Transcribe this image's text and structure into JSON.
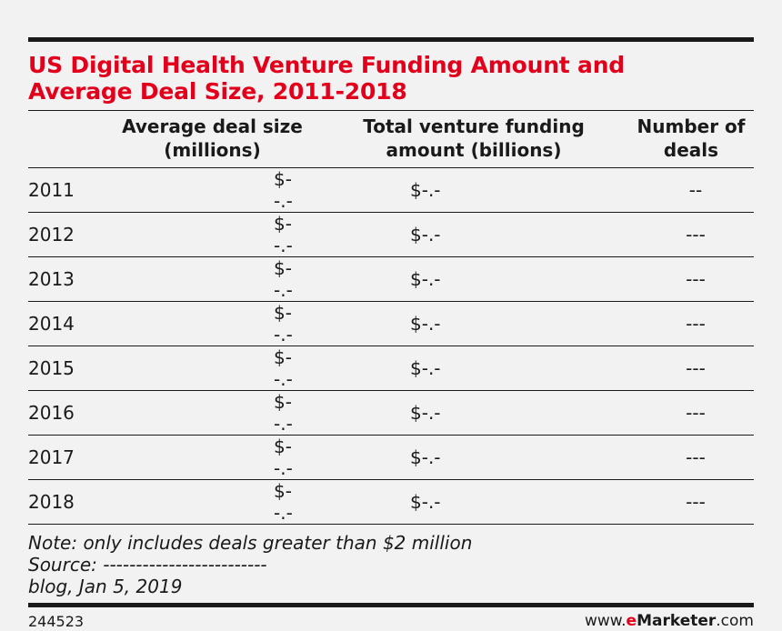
{
  "chart_data": {
    "type": "table",
    "title": "US Digital Health Venture Funding Amount and Average Deal Size, 2011-2018",
    "columns": [
      "",
      "Average deal size (millions)",
      "Total venture funding amount (billions)",
      "Number of deals"
    ],
    "column_lines": [
      [
        "Average deal size",
        "(millions)"
      ],
      [
        "Total venture funding",
        "amount (billions)"
      ],
      [
        "Number of",
        "deals"
      ]
    ],
    "rows": [
      {
        "year": "2011",
        "avg_deal_size": "$--.-",
        "total_funding": "$-.-",
        "num_deals": "--"
      },
      {
        "year": "2012",
        "avg_deal_size": "$--.-",
        "total_funding": "$-.-",
        "num_deals": "---"
      },
      {
        "year": "2013",
        "avg_deal_size": "$--.-",
        "total_funding": "$-.-",
        "num_deals": "---"
      },
      {
        "year": "2014",
        "avg_deal_size": "$--.-",
        "total_funding": "$-.-",
        "num_deals": "---"
      },
      {
        "year": "2015",
        "avg_deal_size": "$--.-",
        "total_funding": "$-.-",
        "num_deals": "---"
      },
      {
        "year": "2016",
        "avg_deal_size": "$--.-",
        "total_funding": "$-.-",
        "num_deals": "---"
      },
      {
        "year": "2017",
        "avg_deal_size": "$--.-",
        "total_funding": "$-.-",
        "num_deals": "---"
      },
      {
        "year": "2018",
        "avg_deal_size": "$--.-",
        "total_funding": "$-.-",
        "num_deals": "---"
      }
    ],
    "notes": [
      "Note: only includes deals greater than $2 million",
      "Source: -------------------------",
      "blog, Jan 5, 2019"
    ]
  },
  "title_lines": [
    "US Digital Health Venture Funding Amount and",
    "Average Deal Size, 2011-2018"
  ],
  "footer": {
    "chart_id": "244523",
    "brand_prefix": "www.",
    "brand_e": "e",
    "brand_name": "Marketer",
    "brand_suffix": ".com"
  },
  "colors": {
    "title": "#e3001b",
    "background": "#f2f2f2",
    "text": "#1a1a1a"
  }
}
